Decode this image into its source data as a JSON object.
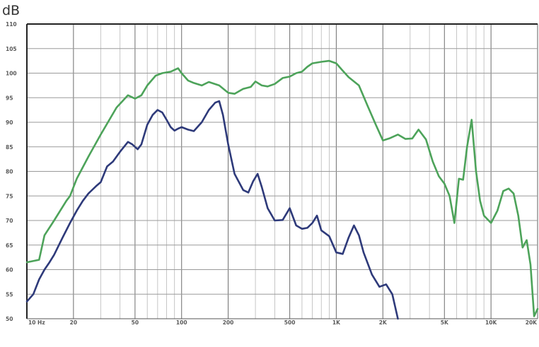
{
  "chart_data": {
    "type": "line",
    "title": "",
    "xlabel": "",
    "ylabel": "dB",
    "x_scale": "log",
    "xlim": [
      10,
      20000
    ],
    "ylim": [
      50,
      110
    ],
    "grid": true,
    "y_ticks": [
      {
        "value": 50,
        "label": "50"
      },
      {
        "value": 55,
        "label": "55"
      },
      {
        "value": 60,
        "label": "60"
      },
      {
        "value": 65,
        "label": "65"
      },
      {
        "value": 70,
        "label": "70"
      },
      {
        "value": 75,
        "label": "75"
      },
      {
        "value": 80,
        "label": "80"
      },
      {
        "value": 85,
        "label": "85"
      },
      {
        "value": 90,
        "label": "90"
      },
      {
        "value": 95,
        "label": "95"
      },
      {
        "value": 100,
        "label": "100"
      },
      {
        "value": 105,
        "label": "105"
      },
      {
        "value": 110,
        "label": "110"
      }
    ],
    "x_ticks": [
      {
        "value": 10,
        "label": "10 Hz"
      },
      {
        "value": 20,
        "label": "20"
      },
      {
        "value": 50,
        "label": "50"
      },
      {
        "value": 100,
        "label": "100"
      },
      {
        "value": 200,
        "label": "200"
      },
      {
        "value": 500,
        "label": "500"
      },
      {
        "value": 1000,
        "label": "1K"
      },
      {
        "value": 2000,
        "label": "2K"
      },
      {
        "value": 5000,
        "label": "5K"
      },
      {
        "value": 10000,
        "label": "10K"
      },
      {
        "value": 20000,
        "label": "20K"
      }
    ],
    "series": [
      {
        "color": "#4da35a",
        "x": [
          10,
          12,
          13,
          15,
          18,
          19,
          21,
          25,
          30,
          38,
          45,
          50,
          55,
          60,
          68,
          75,
          85,
          95,
          100,
          110,
          120,
          135,
          150,
          175,
          200,
          220,
          250,
          280,
          300,
          330,
          360,
          400,
          450,
          500,
          550,
          600,
          650,
          700,
          800,
          900,
          1000,
          1100,
          1200,
          1400,
          1600,
          1800,
          2000,
          2200,
          2500,
          2800,
          3100,
          3400,
          3800,
          4200,
          4600,
          5000,
          5400,
          5800,
          6200,
          6600,
          7000,
          7500,
          8000,
          8500,
          9000,
          10000,
          11000,
          12000,
          13000,
          14000,
          15000,
          16000,
          17000,
          18000,
          19000,
          20000
        ],
        "y": [
          61.5,
          62,
          67,
          70,
          74,
          75,
          78.5,
          83,
          87.5,
          93,
          95.5,
          94.8,
          95.5,
          97.5,
          99.5,
          100,
          100.3,
          101,
          100,
          98.5,
          98,
          97.5,
          98.2,
          97.5,
          96,
          95.8,
          96.8,
          97.2,
          98.3,
          97.5,
          97.3,
          97.8,
          99,
          99.3,
          100,
          100.3,
          101.3,
          102,
          102.3,
          102.5,
          102,
          100.5,
          99.2,
          97.5,
          93.2,
          89.5,
          86.3,
          86.7,
          87.5,
          86.6,
          86.7,
          88.5,
          86.5,
          82,
          79,
          77.5,
          75,
          69.5,
          78.5,
          78.3,
          85,
          90.5,
          80,
          74,
          71,
          69.5,
          72,
          76,
          76.5,
          75.5,
          71,
          64.5,
          66,
          61,
          50.5,
          52
        ]
      },
      {
        "color": "#2e3a7a",
        "x": [
          10,
          11,
          12,
          13,
          14,
          15,
          17,
          19,
          21,
          23,
          25,
          28,
          30,
          33,
          36,
          40,
          45,
          48,
          52,
          55,
          60,
          65,
          70,
          75,
          80,
          85,
          90,
          95,
          100,
          110,
          120,
          135,
          150,
          165,
          175,
          185,
          200,
          220,
          250,
          270,
          290,
          310,
          330,
          360,
          400,
          450,
          500,
          550,
          600,
          650,
          700,
          750,
          800,
          900,
          1000,
          1100,
          1200,
          1300,
          1400,
          1500,
          1700,
          1900,
          2100,
          2300,
          2500
        ],
        "y": [
          53.5,
          55,
          58,
          60,
          61.5,
          63,
          66.5,
          69.5,
          72,
          74,
          75.5,
          77,
          77.8,
          81,
          82,
          84,
          86,
          85.5,
          84.5,
          85.5,
          89.5,
          91.5,
          92.5,
          92,
          90.5,
          89,
          88.3,
          88.7,
          89,
          88.5,
          88.2,
          90,
          92.5,
          94,
          94.3,
          91.5,
          85.5,
          79.5,
          76.2,
          75.7,
          78,
          79.5,
          76.8,
          72.5,
          70,
          70.1,
          72.5,
          69,
          68.3,
          68.5,
          69.5,
          71,
          68,
          66.8,
          63.5,
          63.2,
          66.5,
          69,
          67,
          63.5,
          59,
          56.5,
          57,
          55,
          50
        ]
      }
    ]
  }
}
